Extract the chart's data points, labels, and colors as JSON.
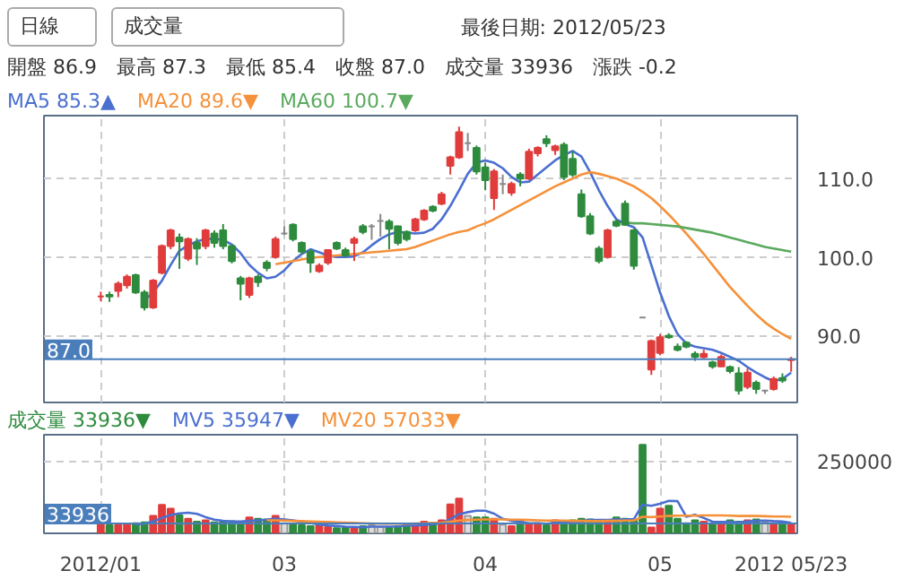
{
  "chart_data": [
    {
      "type": "candlestick",
      "annotations": [
        "日線",
        "成交量",
        "最後日期: 2012/05/23",
        "開盤 86.9　最高 87.3　最低 85.4　收盤 87.0　成交量 33936　漲跌 -0.2"
      ],
      "categories": [
        null,
        null,
        null,
        null,
        null,
        null,
        null,
        null,
        null,
        null,
        null,
        null,
        null,
        null,
        null,
        null,
        null,
        null,
        null,
        null,
        null,
        null,
        null,
        null,
        null,
        null,
        null,
        null,
        null,
        null,
        null,
        null,
        null,
        null,
        null,
        null,
        null,
        null,
        null,
        null,
        null,
        null,
        null,
        null,
        null,
        null,
        null,
        null,
        null,
        null,
        null,
        null,
        null,
        null,
        null,
        null,
        null,
        null,
        null,
        null,
        null,
        null,
        null,
        null,
        null,
        null,
        null,
        null,
        null,
        null,
        null,
        null,
        null,
        null,
        null,
        null,
        null,
        null,
        null,
        null
      ],
      "ohlc": [
        [
          95.0,
          95.6,
          94.4,
          95.0
        ],
        [
          95.2,
          95.6,
          94.3,
          95.0
        ],
        [
          95.7,
          96.9,
          94.9,
          96.6
        ],
        [
          96.4,
          97.8,
          96.0,
          97.5
        ],
        [
          97.7,
          97.9,
          95.3,
          95.5
        ],
        [
          95.5,
          95.8,
          93.2,
          93.6
        ],
        [
          93.6,
          97.2,
          93.4,
          97.0
        ],
        [
          98.0,
          101.6,
          97.8,
          101.4
        ],
        [
          101.4,
          103.6,
          101.0,
          103.4
        ],
        [
          102.5,
          103.0,
          98.5,
          102.0
        ],
        [
          99.8,
          102.5,
          99.5,
          102.3
        ],
        [
          101.8,
          102.4,
          99.0,
          101.1
        ],
        [
          101.4,
          103.6,
          101.0,
          103.4
        ],
        [
          103.0,
          103.4,
          101.2,
          101.8
        ],
        [
          103.4,
          104.2,
          101.0,
          101.4
        ],
        [
          101.4,
          101.6,
          99.2,
          99.5
        ],
        [
          97.3,
          97.6,
          94.5,
          96.6
        ],
        [
          95.2,
          97.5,
          94.8,
          97.3
        ],
        [
          97.5,
          97.8,
          96.2,
          96.8
        ],
        [
          99.3,
          99.6,
          98.2,
          98.6
        ],
        [
          100.0,
          102.6,
          99.8,
          102.3
        ],
        [
          103.0,
          103.9,
          102.8,
          103.0
        ],
        [
          104.1,
          104.3,
          102.0,
          102.3
        ],
        [
          101.8,
          102.0,
          100.4,
          100.7
        ],
        [
          100.7,
          101.0,
          98.0,
          99.3
        ],
        [
          98.2,
          99.2,
          98.0,
          98.9
        ],
        [
          99.3,
          101.0,
          99.0,
          100.9
        ],
        [
          101.8,
          102.0,
          100.9,
          101.1
        ],
        [
          100.9,
          101.2,
          100.0,
          100.2
        ],
        [
          101.8,
          102.6,
          99.5,
          102.3
        ],
        [
          103.9,
          104.2,
          102.9,
          103.2
        ],
        [
          103.9,
          104.2,
          102.2,
          103.9
        ],
        [
          104.6,
          105.5,
          102.6,
          104.6
        ],
        [
          104.5,
          104.8,
          101.0,
          103.6
        ],
        [
          103.9,
          104.0,
          101.5,
          101.8
        ],
        [
          103.2,
          103.4,
          102.0,
          102.3
        ],
        [
          103.4,
          105.0,
          103.2,
          104.8
        ],
        [
          104.8,
          106.1,
          104.6,
          105.9
        ],
        [
          106.4,
          106.6,
          105.7,
          105.9
        ],
        [
          106.8,
          108.3,
          106.6,
          108.0
        ],
        [
          111.6,
          112.9,
          110.5,
          112.7
        ],
        [
          112.7,
          116.6,
          112.5,
          115.9
        ],
        [
          114.5,
          115.8,
          113.5,
          114.5
        ],
        [
          113.9,
          114.2,
          110.5,
          110.9
        ],
        [
          111.4,
          112.0,
          108.5,
          109.8
        ],
        [
          107.5,
          111.2,
          106.0,
          110.9
        ],
        [
          109.3,
          110.5,
          108.0,
          109.3
        ],
        [
          108.2,
          109.6,
          107.8,
          109.3
        ],
        [
          110.5,
          110.8,
          109.0,
          110.0
        ],
        [
          110.0,
          113.8,
          109.8,
          113.4
        ],
        [
          113.2,
          114.1,
          112.8,
          113.9
        ],
        [
          115.0,
          115.5,
          114.0,
          114.5
        ],
        [
          113.6,
          114.3,
          113.0,
          114.1
        ],
        [
          114.3,
          114.6,
          109.8,
          110.2
        ],
        [
          112.5,
          113.5,
          110.2,
          110.5
        ],
        [
          108.0,
          108.6,
          105.0,
          105.2
        ],
        [
          105.2,
          105.6,
          102.8,
          103.0
        ],
        [
          101.1,
          101.4,
          99.2,
          99.5
        ],
        [
          100.0,
          103.6,
          99.8,
          103.4
        ],
        [
          104.5,
          104.8,
          103.8,
          104.0
        ],
        [
          106.8,
          107.2,
          104.0,
          104.1
        ],
        [
          103.4,
          103.6,
          98.4,
          98.9
        ],
        [
          92.3,
          92.3,
          92.3,
          92.3
        ],
        [
          85.7,
          89.5,
          85.0,
          89.3
        ],
        [
          87.8,
          90.2,
          87.5,
          89.8
        ],
        [
          90.0,
          90.3,
          89.6,
          89.8
        ],
        [
          88.6,
          89.0,
          88.0,
          88.2
        ],
        [
          89.1,
          89.3,
          88.4,
          88.6
        ],
        [
          87.7,
          88.0,
          86.8,
          87.3
        ],
        [
          87.3,
          88.2,
          87.1,
          87.7
        ],
        [
          86.6,
          86.8,
          85.8,
          86.1
        ],
        [
          86.1,
          87.6,
          86.0,
          87.3
        ],
        [
          86.0,
          86.2,
          85.2,
          85.5
        ],
        [
          85.2,
          86.0,
          82.5,
          83.0
        ],
        [
          83.5,
          85.8,
          83.2,
          85.3
        ],
        [
          84.0,
          84.3,
          82.6,
          83.2
        ],
        [
          83.0,
          83.0,
          82.6,
          83.0
        ],
        [
          83.2,
          84.8,
          83.0,
          84.5
        ],
        [
          84.6,
          85.2,
          84.0,
          84.3
        ],
        [
          86.9,
          87.3,
          85.4,
          87.0
        ]
      ],
      "colors": [
        "#e03c3c",
        "#2e8b3e",
        "#e03c3c",
        "#e03c3c",
        "#2e8b3e",
        "#2e8b3e",
        "#e03c3c",
        "#e03c3c",
        "#e03c3c",
        "#2e8b3e",
        "#e03c3c",
        "#2e8b3e",
        "#e03c3c",
        "#2e8b3e",
        "#2e8b3e",
        "#2e8b3e",
        "#2e8b3e",
        "#e03c3c",
        "#2e8b3e",
        "#2e8b3e",
        "#e03c3c",
        "#888888",
        "#2e8b3e",
        "#2e8b3e",
        "#2e8b3e",
        "#e03c3c",
        "#e03c3c",
        "#2e8b3e",
        "#2e8b3e",
        "#e03c3c",
        "#2e8b3e",
        "#888888",
        "#888888",
        "#2e8b3e",
        "#2e8b3e",
        "#2e8b3e",
        "#e03c3c",
        "#e03c3c",
        "#2e8b3e",
        "#e03c3c",
        "#e03c3c",
        "#e03c3c",
        "#888888",
        "#2e8b3e",
        "#2e8b3e",
        "#e03c3c",
        "#888888",
        "#e03c3c",
        "#2e8b3e",
        "#e03c3c",
        "#e03c3c",
        "#2e8b3e",
        "#e03c3c",
        "#2e8b3e",
        "#2e8b3e",
        "#2e8b3e",
        "#2e8b3e",
        "#2e8b3e",
        "#e03c3c",
        "#2e8b3e",
        "#2e8b3e",
        "#2e8b3e",
        "#888888",
        "#e03c3c",
        "#e03c3c",
        "#2e8b3e",
        "#2e8b3e",
        "#2e8b3e",
        "#2e8b3e",
        "#e03c3c",
        "#2e8b3e",
        "#e03c3c",
        "#2e8b3e",
        "#2e8b3e",
        "#e03c3c",
        "#2e8b3e",
        "#888888",
        "#e03c3c",
        "#2e8b3e",
        "#e03c3c"
      ],
      "series": [
        {
          "name": "MA5 85.3▲",
          "type": "line",
          "color": "#4a6fd0",
          "values": [
            null,
            null,
            null,
            null,
            null,
            94.5,
            95.5,
            97,
            99,
            100.8,
            101.5,
            102,
            102.3,
            102.3,
            102.2,
            101.6,
            100.5,
            99,
            98,
            97.3,
            97.5,
            98.3,
            99.5,
            100.4,
            101,
            100.6,
            100.2,
            100,
            100,
            100.1,
            100.6,
            101.5,
            102.3,
            102.9,
            103.2,
            103.1,
            103,
            103.1,
            103.6,
            104.8,
            106.5,
            108.5,
            110.6,
            112,
            112.3,
            112,
            111.3,
            110.2,
            109.5,
            109.6,
            110.5,
            111.4,
            112.3,
            113,
            113.5,
            112.8,
            110.8,
            108.5,
            106.5,
            104.8,
            104.2,
            103.8,
            102.5,
            99,
            95.5,
            92.5,
            90.2,
            89,
            88.6,
            88.4,
            88.2,
            87.8,
            87.3,
            86.8,
            86,
            85.3,
            84.7,
            84.2,
            84.5,
            85.3
          ]
        },
        {
          "name": "MA20 89.6▼",
          "type": "line",
          "color": "#f5913a",
          "values": [
            null,
            null,
            null,
            null,
            null,
            null,
            null,
            null,
            null,
            null,
            null,
            null,
            null,
            null,
            null,
            null,
            null,
            null,
            null,
            null,
            99.1,
            99.3,
            99.5,
            99.7,
            99.9,
            100.0,
            100.1,
            100.2,
            100.3,
            100.4,
            100.5,
            100.6,
            100.7,
            100.8,
            100.9,
            101.0,
            101.3,
            101.7,
            102.1,
            102.5,
            102.9,
            103.2,
            103.4,
            103.9,
            104.3,
            104.8,
            105.4,
            106,
            106.6,
            107.2,
            107.8,
            108.4,
            109,
            109.5,
            110,
            110.5,
            110.8,
            110.6,
            110.3,
            110,
            109.5,
            109,
            108.3,
            107.5,
            106.5,
            105.4,
            104.2,
            103,
            101.7,
            100.4,
            99.0,
            97.6,
            96.2,
            95,
            93.8,
            92.7,
            91.7,
            90.9,
            90.2,
            89.6
          ]
        },
        {
          "name": "MA60 100.7▼",
          "type": "line",
          "color": "#5aaa5e",
          "values": [
            null,
            null,
            null,
            null,
            null,
            null,
            null,
            null,
            null,
            null,
            null,
            null,
            null,
            null,
            null,
            null,
            null,
            null,
            null,
            null,
            null,
            null,
            null,
            null,
            null,
            null,
            null,
            null,
            null,
            null,
            null,
            null,
            null,
            null,
            null,
            null,
            null,
            null,
            null,
            null,
            null,
            null,
            null,
            null,
            null,
            null,
            null,
            null,
            null,
            null,
            null,
            null,
            null,
            null,
            null,
            null,
            null,
            null,
            null,
            null,
            104.4,
            104.3,
            104.3,
            104.2,
            104.1,
            104,
            103.9,
            103.7,
            103.5,
            103.3,
            103.1,
            102.8,
            102.5,
            102.2,
            101.9,
            101.6,
            101.3,
            101.1,
            100.9,
            100.7
          ]
        }
      ],
      "ylim": [
        81.5,
        118
      ],
      "yticks": [
        {
          "value": 90,
          "label": "90.0"
        },
        {
          "value": 100,
          "label": "100.0"
        },
        {
          "value": 110,
          "label": "110.0"
        }
      ],
      "ref_lines": [
        {
          "axis": "y",
          "value": 87.0,
          "label": "87.0",
          "color": "#4a7ebb"
        }
      ],
      "grid": true,
      "legend": "top left",
      "tick_labels": "y"
    },
    {
      "type": "bar",
      "categories": [
        "2012/01",
        null,
        null,
        null,
        null,
        null,
        null,
        null,
        null,
        null,
        null,
        null,
        null,
        null,
        null,
        null,
        null,
        null,
        null,
        null,
        null,
        "03",
        null,
        null,
        null,
        null,
        null,
        null,
        null,
        null,
        null,
        null,
        null,
        null,
        null,
        null,
        null,
        null,
        null,
        null,
        null,
        null,
        null,
        null,
        "04",
        null,
        null,
        null,
        null,
        null,
        null,
        null,
        null,
        null,
        null,
        null,
        null,
        null,
        null,
        null,
        null,
        null,
        null,
        null,
        "05",
        null,
        null,
        null,
        null,
        null,
        null,
        null,
        null,
        null,
        null,
        null,
        null,
        null,
        null,
        "2012 05/23"
      ],
      "series": [
        {
          "name": "成交量 33936▼",
          "type": "bar",
          "color": "#2e8b3e",
          "colors": [
            "#e03c3c",
            "#2e8b3e",
            "#e03c3c",
            "#e03c3c",
            "#2e8b3e",
            "#2e8b3e",
            "#e03c3c",
            "#e03c3c",
            "#e03c3c",
            "#2e8b3e",
            "#e03c3c",
            "#2e8b3e",
            "#e03c3c",
            "#2e8b3e",
            "#2e8b3e",
            "#2e8b3e",
            "#2e8b3e",
            "#e03c3c",
            "#2e8b3e",
            "#2e8b3e",
            "#e03c3c",
            "#dddddd",
            "#2e8b3e",
            "#2e8b3e",
            "#2e8b3e",
            "#e03c3c",
            "#e03c3c",
            "#2e8b3e",
            "#2e8b3e",
            "#e03c3c",
            "#2e8b3e",
            "#dddddd",
            "#dddddd",
            "#2e8b3e",
            "#2e8b3e",
            "#2e8b3e",
            "#e03c3c",
            "#e03c3c",
            "#2e8b3e",
            "#e03c3c",
            "#e03c3c",
            "#e03c3c",
            "#dddddd",
            "#2e8b3e",
            "#2e8b3e",
            "#e03c3c",
            "#dddddd",
            "#e03c3c",
            "#2e8b3e",
            "#e03c3c",
            "#e03c3c",
            "#2e8b3e",
            "#e03c3c",
            "#2e8b3e",
            "#2e8b3e",
            "#2e8b3e",
            "#2e8b3e",
            "#2e8b3e",
            "#e03c3c",
            "#2e8b3e",
            "#2e8b3e",
            "#2e8b3e",
            "#2e8b3e",
            "#e03c3c",
            "#e03c3c",
            "#2e8b3e",
            "#2e8b3e",
            "#2e8b3e",
            "#2e8b3e",
            "#e03c3c",
            "#2e8b3e",
            "#e03c3c",
            "#2e8b3e",
            "#2e8b3e",
            "#e03c3c",
            "#2e8b3e",
            "#dddddd",
            "#e03c3c",
            "#2e8b3e",
            "#e03c3c"
          ],
          "values": [
            30000,
            28000,
            30000,
            32000,
            35000,
            38000,
            60000,
            98000,
            85000,
            62000,
            50000,
            40000,
            45000,
            38000,
            40000,
            42000,
            40000,
            55000,
            50000,
            48000,
            60000,
            35000,
            30000,
            28000,
            25000,
            30000,
            22000,
            18000,
            20000,
            22000,
            25000,
            28000,
            22000,
            20000,
            25000,
            30000,
            28000,
            40000,
            35000,
            45000,
            100000,
            120000,
            60000,
            55000,
            55000,
            50000,
            30000,
            25000,
            40000,
            30000,
            35000,
            28000,
            45000,
            40000,
            45000,
            50000,
            48000,
            45000,
            42000,
            55000,
            50000,
            45000,
            305000,
            20000,
            85000,
            95000,
            50000,
            35000,
            45000,
            40000,
            30000,
            35000,
            45000,
            40000,
            45000,
            48000,
            40000,
            35000,
            38000,
            34000
          ]
        },
        {
          "name": "MV5 35947▼",
          "type": "line",
          "color": "#4a6fd0",
          "values": [
            null,
            null,
            null,
            null,
            31000,
            33000,
            41000,
            53000,
            63000,
            69000,
            71000,
            67000,
            56000,
            47000,
            43000,
            41000,
            41000,
            43000,
            45000,
            47000,
            51000,
            48000,
            45000,
            40000,
            36000,
            30000,
            27000,
            25000,
            23000,
            22000,
            21000,
            23000,
            23000,
            23000,
            24000,
            27000,
            27000,
            29000,
            32000,
            36000,
            49000,
            66000,
            73000,
            78000,
            78000,
            68000,
            50000,
            43000,
            40000,
            35000,
            35000,
            33000,
            36000,
            38000,
            39000,
            43000,
            46000,
            46000,
            46000,
            48000,
            48000,
            49000,
            99000,
            95000,
            102000,
            112000,
            111000,
            57000,
            64000,
            53000,
            40000,
            39000,
            39000,
            38000,
            41000,
            43000,
            44000,
            42000,
            41000,
            36000
          ]
        },
        {
          "name": "MV20 57033▼",
          "type": "line",
          "color": "#f5913a",
          "values": [
            null,
            null,
            null,
            null,
            null,
            null,
            null,
            null,
            null,
            null,
            null,
            null,
            null,
            null,
            null,
            null,
            null,
            null,
            null,
            45000,
            45000,
            44000,
            43000,
            42000,
            41000,
            40000,
            39000,
            38000,
            37000,
            36000,
            35000,
            34000,
            33000,
            33000,
            33000,
            33000,
            34000,
            35000,
            36000,
            37000,
            40000,
            44000,
            46000,
            47000,
            48000,
            48000,
            48000,
            47000,
            47000,
            46000,
            45000,
            44000,
            44000,
            44000,
            43000,
            43000,
            42000,
            42000,
            43000,
            43000,
            44000,
            44000,
            57000,
            56000,
            58000,
            60000,
            61000,
            61000,
            61000,
            62000,
            62000,
            62000,
            61000,
            60000,
            60000,
            60000,
            59000,
            58000,
            58000,
            57000
          ]
        }
      ],
      "ylim": [
        0,
        340000
      ],
      "yticks": [
        {
          "value": 0,
          "label": null
        },
        250000
      ],
      "ref_lines": [
        {
          "axis": "y",
          "value": 33936,
          "label": "33936",
          "color": "#4a7ebb"
        }
      ],
      "grid": true,
      "legend": "top left"
    }
  ]
}
